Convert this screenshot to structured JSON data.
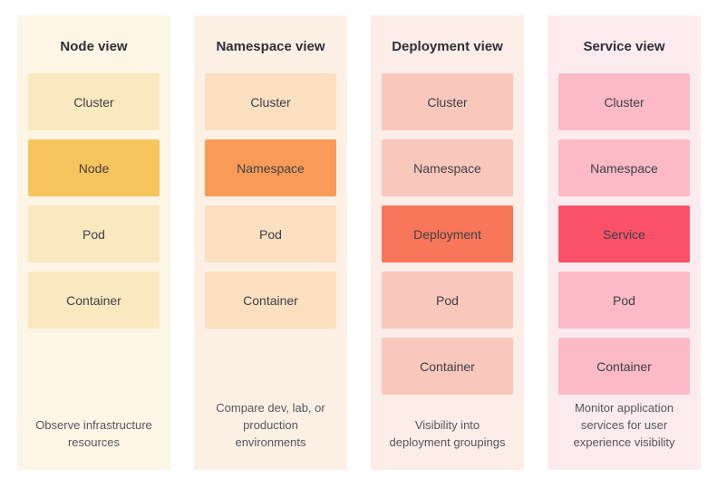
{
  "page": {
    "background": "#FFFFFF",
    "title_color": "#2F2F36",
    "label_color": "#3F3F46",
    "description_color": "#55555C"
  },
  "columns": [
    {
      "title": "Node view",
      "background": "#FDF5E6",
      "box_color": "#FAE8BF",
      "highlight_color": "#F8C45D",
      "boxes": [
        {
          "label": "Cluster",
          "highlighted": false
        },
        {
          "label": "Node",
          "highlighted": true
        },
        {
          "label": "Pod",
          "highlighted": false
        },
        {
          "label": "Container",
          "highlighted": false
        }
      ],
      "description": "Observe infrastructure resources"
    },
    {
      "title": "Namespace view",
      "background": "#FCF0E5",
      "box_color": "#FADFC1",
      "highlight_color": "#F89B57",
      "boxes": [
        {
          "label": "Cluster",
          "highlighted": false
        },
        {
          "label": "Namespace",
          "highlighted": true
        },
        {
          "label": "Pod",
          "highlighted": false
        },
        {
          "label": "Container",
          "highlighted": false
        }
      ],
      "description": "Compare dev, lab, or production environments"
    },
    {
      "title": "Deployment view",
      "background": "#FCEDE8",
      "box_color": "#F9C7BC",
      "highlight_color": "#F87659",
      "boxes": [
        {
          "label": "Cluster",
          "highlighted": false
        },
        {
          "label": "Namespace",
          "highlighted": false
        },
        {
          "label": "Deployment",
          "highlighted": true
        },
        {
          "label": "Pod",
          "highlighted": false
        },
        {
          "label": "Container",
          "highlighted": false
        }
      ],
      "description": "Visibility into deployment groupings"
    },
    {
      "title": "Service view",
      "background": "#FCEBEE",
      "box_color": "#FBBAC5",
      "highlight_color": "#FA5168",
      "boxes": [
        {
          "label": "Cluster",
          "highlighted": false
        },
        {
          "label": "Namespace",
          "highlighted": false
        },
        {
          "label": "Service",
          "highlighted": true
        },
        {
          "label": "Pod",
          "highlighted": false
        },
        {
          "label": "Container",
          "highlighted": false
        }
      ],
      "description": "Monitor application services for user experience visibility"
    }
  ]
}
